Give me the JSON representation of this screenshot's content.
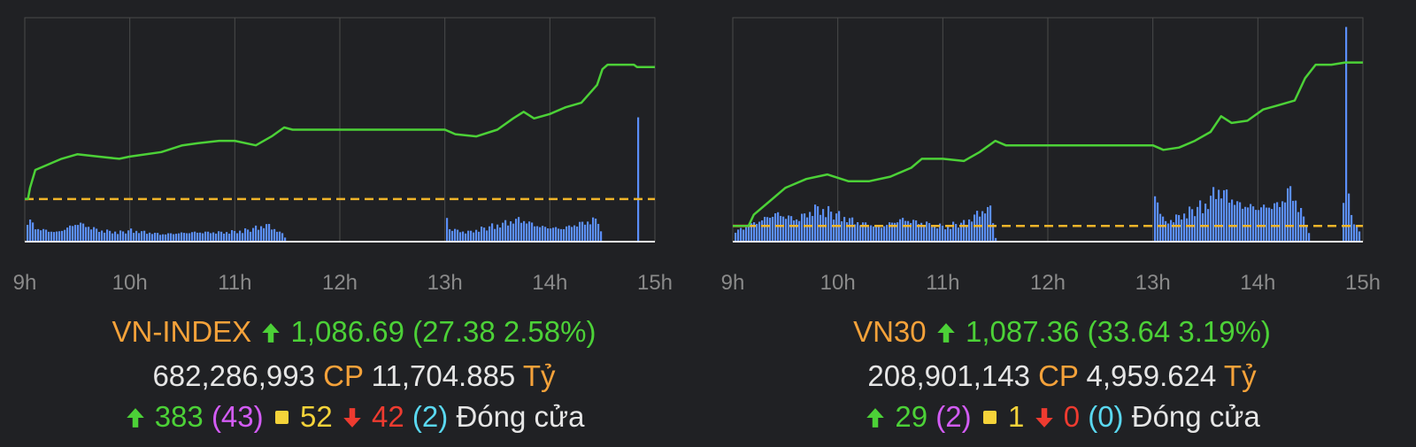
{
  "chart_data": [
    {
      "type": "line",
      "name": "VN-INDEX intraday",
      "x_ticks": [
        "9h",
        "10h",
        "11h",
        "12h",
        "13h",
        "14h",
        "15h"
      ],
      "x_range_hours": [
        9,
        15
      ],
      "reference_level_fraction": 0.19,
      "price_fraction_points": [
        [
          9.0,
          0.19
        ],
        [
          9.03,
          0.19
        ],
        [
          9.05,
          0.24
        ],
        [
          9.1,
          0.32
        ],
        [
          9.2,
          0.34
        ],
        [
          9.35,
          0.37
        ],
        [
          9.5,
          0.39
        ],
        [
          9.7,
          0.38
        ],
        [
          9.9,
          0.37
        ],
        [
          10.0,
          0.38
        ],
        [
          10.3,
          0.4
        ],
        [
          10.5,
          0.43
        ],
        [
          10.65,
          0.44
        ],
        [
          10.85,
          0.45
        ],
        [
          11.0,
          0.45
        ],
        [
          11.2,
          0.43
        ],
        [
          11.35,
          0.47
        ],
        [
          11.47,
          0.51
        ],
        [
          11.55,
          0.5
        ],
        [
          12.0,
          0.5
        ],
        [
          12.5,
          0.5
        ],
        [
          13.0,
          0.5
        ],
        [
          13.1,
          0.48
        ],
        [
          13.3,
          0.47
        ],
        [
          13.5,
          0.5
        ],
        [
          13.65,
          0.55
        ],
        [
          13.75,
          0.58
        ],
        [
          13.85,
          0.55
        ],
        [
          14.0,
          0.57
        ],
        [
          14.15,
          0.6
        ],
        [
          14.3,
          0.62
        ],
        [
          14.45,
          0.7
        ],
        [
          14.5,
          0.77
        ],
        [
          14.55,
          0.79
        ],
        [
          14.8,
          0.79
        ],
        [
          14.83,
          0.78
        ],
        [
          15.0,
          0.78
        ]
      ],
      "volume_fraction_points": [
        [
          9.0,
          0.08
        ],
        [
          9.03,
          0.12
        ],
        [
          9.1,
          0.07
        ],
        [
          9.3,
          0.05
        ],
        [
          9.5,
          0.1
        ],
        [
          9.7,
          0.06
        ],
        [
          9.9,
          0.05
        ],
        [
          10.0,
          0.06
        ],
        [
          10.3,
          0.04
        ],
        [
          10.6,
          0.05
        ],
        [
          10.9,
          0.05
        ],
        [
          11.1,
          0.06
        ],
        [
          11.3,
          0.09
        ],
        [
          11.45,
          0.04
        ],
        [
          11.5,
          0.0
        ],
        [
          13.0,
          0.0
        ],
        [
          13.0,
          0.22
        ],
        [
          13.02,
          0.07
        ],
        [
          13.2,
          0.05
        ],
        [
          13.5,
          0.09
        ],
        [
          13.7,
          0.12
        ],
        [
          13.9,
          0.08
        ],
        [
          14.1,
          0.07
        ],
        [
          14.3,
          0.1
        ],
        [
          14.45,
          0.12
        ],
        [
          14.5,
          0.0
        ],
        [
          14.83,
          0.0
        ],
        [
          14.83,
          0.65
        ],
        [
          14.84,
          0.0
        ]
      ],
      "colors": {
        "line": "#4cd137",
        "reference": "#f0b429",
        "volume": "#5b8ff9"
      }
    },
    {
      "type": "line",
      "name": "VN30 intraday",
      "x_ticks": [
        "9h",
        "10h",
        "11h",
        "12h",
        "13h",
        "14h",
        "15h"
      ],
      "x_range_hours": [
        9,
        15
      ],
      "reference_level_fraction": 0.07,
      "price_fraction_points": [
        [
          9.0,
          0.07
        ],
        [
          9.15,
          0.07
        ],
        [
          9.2,
          0.12
        ],
        [
          9.35,
          0.18
        ],
        [
          9.5,
          0.24
        ],
        [
          9.7,
          0.28
        ],
        [
          9.9,
          0.3
        ],
        [
          10.1,
          0.27
        ],
        [
          10.3,
          0.27
        ],
        [
          10.5,
          0.29
        ],
        [
          10.7,
          0.33
        ],
        [
          10.8,
          0.37
        ],
        [
          11.0,
          0.37
        ],
        [
          11.2,
          0.36
        ],
        [
          11.35,
          0.4
        ],
        [
          11.5,
          0.45
        ],
        [
          11.6,
          0.43
        ],
        [
          12.0,
          0.43
        ],
        [
          12.5,
          0.43
        ],
        [
          13.0,
          0.43
        ],
        [
          13.1,
          0.41
        ],
        [
          13.25,
          0.42
        ],
        [
          13.4,
          0.45
        ],
        [
          13.55,
          0.49
        ],
        [
          13.65,
          0.56
        ],
        [
          13.75,
          0.53
        ],
        [
          13.9,
          0.54
        ],
        [
          14.05,
          0.59
        ],
        [
          14.2,
          0.61
        ],
        [
          14.35,
          0.63
        ],
        [
          14.45,
          0.73
        ],
        [
          14.55,
          0.79
        ],
        [
          14.7,
          0.79
        ],
        [
          14.83,
          0.8
        ],
        [
          15.0,
          0.8
        ]
      ],
      "volume_fraction_points": [
        [
          9.0,
          0.05
        ],
        [
          9.2,
          0.1
        ],
        [
          9.4,
          0.15
        ],
        [
          9.6,
          0.12
        ],
        [
          9.8,
          0.18
        ],
        [
          10.0,
          0.14
        ],
        [
          10.2,
          0.1
        ],
        [
          10.4,
          0.08
        ],
        [
          10.6,
          0.12
        ],
        [
          10.8,
          0.1
        ],
        [
          11.0,
          0.08
        ],
        [
          11.2,
          0.1
        ],
        [
          11.35,
          0.16
        ],
        [
          11.45,
          0.18
        ],
        [
          11.5,
          0.0
        ],
        [
          13.0,
          0.0
        ],
        [
          13.0,
          0.28
        ],
        [
          13.1,
          0.1
        ],
        [
          13.3,
          0.15
        ],
        [
          13.5,
          0.2
        ],
        [
          13.6,
          0.28
        ],
        [
          13.7,
          0.25
        ],
        [
          13.8,
          0.2
        ],
        [
          14.0,
          0.18
        ],
        [
          14.2,
          0.2
        ],
        [
          14.3,
          0.28
        ],
        [
          14.45,
          0.1
        ],
        [
          14.5,
          0.0
        ],
        [
          14.8,
          0.0
        ],
        [
          14.83,
          1.0
        ],
        [
          14.86,
          0.15
        ],
        [
          15.0,
          0.02
        ]
      ],
      "colors": {
        "line": "#4cd137",
        "reference": "#f0b429",
        "volume": "#5b8ff9"
      }
    }
  ],
  "left_summary": {
    "index_name": "VN-INDEX",
    "value": "1,086.69",
    "change": "(27.38 2.58%)",
    "volume": "682,286,993",
    "volume_unit": "CP",
    "turnover": "11,704.885",
    "turnover_unit": "Tỷ",
    "advancers": "383",
    "ceiling": "(43)",
    "unchanged": "52",
    "decliners": "42",
    "floor": "(2)",
    "status": "Đóng cửa"
  },
  "right_summary": {
    "index_name": "VN30",
    "value": "1,087.36",
    "change": "(33.64 3.19%)",
    "volume": "208,901,143",
    "volume_unit": "CP",
    "turnover": "4,959.624",
    "turnover_unit": "Tỷ",
    "advancers": "29",
    "ceiling": "(2)",
    "unchanged": "1",
    "decliners": "0",
    "floor": "(0)",
    "status": "Đóng cửa"
  },
  "colors": {
    "orange": "#f5a23a",
    "green": "#4cd137",
    "magenta": "#d35cf5",
    "yellow": "#f5d33a",
    "red": "#ee3b30",
    "cyan": "#5ad8f0",
    "white": "#e6e6e6"
  }
}
